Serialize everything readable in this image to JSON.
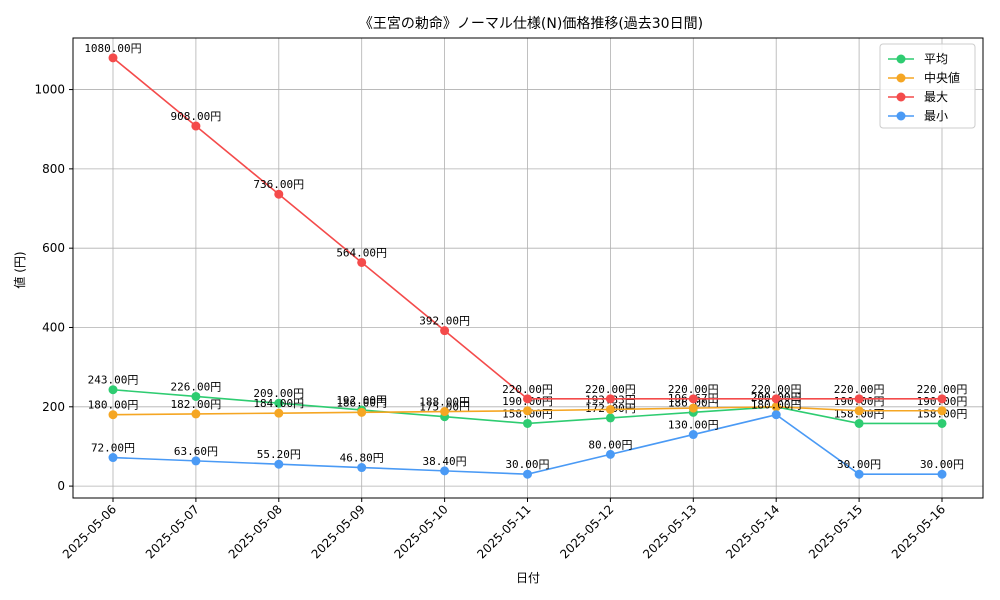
{
  "chart_data": {
    "type": "line",
    "title": "《王宮の勅命》ノーマル仕様(N)価格推移(過去30日間)",
    "xlabel": "日付",
    "ylabel": "値 (円)",
    "ylim": [
      -30,
      1130
    ],
    "yticks": [
      0,
      200,
      400,
      600,
      800,
      1000
    ],
    "grid": true,
    "legend_position": "top-right",
    "categories": [
      "2025-05-06",
      "2025-05-07",
      "2025-05-08",
      "2025-05-09",
      "2025-05-10",
      "2025-05-11",
      "2025-05-12",
      "2025-05-13",
      "2025-05-14",
      "2025-05-15",
      "2025-05-16"
    ],
    "series": [
      {
        "name": "平均",
        "color": "#2ecc71",
        "values": [
          243,
          226,
          209,
          192,
          175,
          158,
          172,
          186,
          200,
          158,
          158
        ],
        "labels": [
          "243.00円",
          "226.00円",
          "209.00円",
          "192.00円",
          "175.00円",
          "158.00円",
          "172.00円",
          "186.00円",
          "200.00円",
          "158.00円",
          "158.00円"
        ]
      },
      {
        "name": "中央値",
        "color": "#f5a623",
        "values": [
          180,
          182,
          184,
          186,
          188,
          190,
          193.33,
          196.67,
          200,
          190,
          190
        ],
        "labels": [
          "180.00円",
          "182.00円",
          "184.00円",
          "186.00円",
          "188.00円",
          "190.00円",
          "193.33円",
          "196.67円",
          "200.00円",
          "190.00円",
          "190.00円"
        ]
      },
      {
        "name": "最大",
        "color": "#f44b4b",
        "values": [
          1080,
          908,
          736,
          564,
          392,
          220,
          220,
          220,
          220,
          220,
          220
        ],
        "labels": [
          "1080.00円",
          "908.00円",
          "736.00円",
          "564.00円",
          "392.00円",
          "220.00円",
          "220.00円",
          "220.00円",
          "220.00円",
          "220.00円",
          "220.00円"
        ]
      },
      {
        "name": "最小",
        "color": "#4a9af5",
        "values": [
          72,
          63.6,
          55.2,
          46.8,
          38.4,
          30,
          80,
          130,
          180,
          30,
          30
        ],
        "labels": [
          "72.00円",
          "63.60円",
          "55.20円",
          "46.80円",
          "38.40円",
          "30.00円",
          "80.00円",
          "130.00円",
          "180.00円",
          "30.00円",
          "30.00円"
        ]
      }
    ]
  }
}
